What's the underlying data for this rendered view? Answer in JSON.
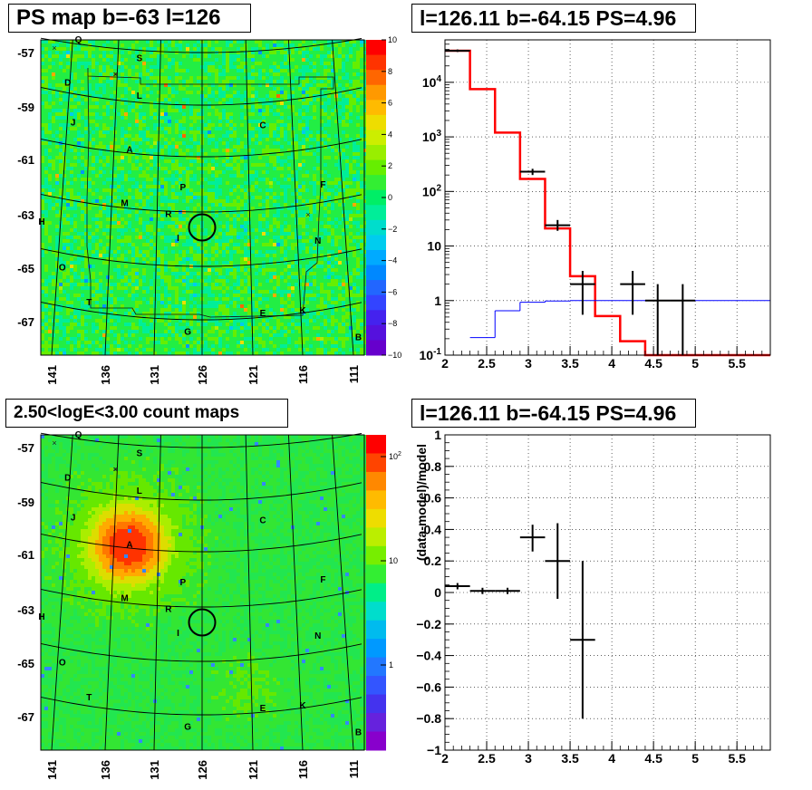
{
  "panels": {
    "top_left_title": "PS map b=-63 l=126",
    "top_right_title": "l=126.11 b=-64.15 PS=4.96",
    "bottom_left_title": "2.50<logE<3.00 count maps",
    "bottom_right_title": "l=126.11 b=-64.15 PS=4.96"
  },
  "colors": {
    "map_green": "#22ee44",
    "hot_red": "#ff2200",
    "model": "#ff0000",
    "baseline": "#0000ff",
    "data": "#000000"
  },
  "chart_data": [
    {
      "type": "heatmap",
      "title": "PS map b=-63 l=126",
      "y_ticks": [
        "-57",
        "-59",
        "-61",
        "-63",
        "-65",
        "-67"
      ],
      "x_ticks": [
        "141",
        "136",
        "131",
        "126",
        "121",
        "116",
        "111"
      ],
      "colorbar_ticks": [
        "10",
        "8",
        "6",
        "4",
        "2",
        "0",
        "−2",
        "−4",
        "−6",
        "−8",
        "−10"
      ],
      "colorbar_range": [
        -10,
        10
      ],
      "source_labels": [
        {
          "t": "Q",
          "l": 138.5,
          "b": -56.6
        },
        {
          "t": "S",
          "l": 132.5,
          "b": -57.3
        },
        {
          "t": "D",
          "l": 139.5,
          "b": -58.2
        },
        {
          "t": "L",
          "l": 132.5,
          "b": -58.7
        },
        {
          "t": "J",
          "l": 139.0,
          "b": -59.7
        },
        {
          "t": "C",
          "l": 120.0,
          "b": -59.8
        },
        {
          "t": "A",
          "l": 133.5,
          "b": -60.7
        },
        {
          "t": "P",
          "l": 128.0,
          "b": -62.1
        },
        {
          "t": "F",
          "l": 114.0,
          "b": -62.0
        },
        {
          "t": "M",
          "l": 134.0,
          "b": -62.7
        },
        {
          "t": "R",
          "l": 129.5,
          "b": -63.1
        },
        {
          "t": "H",
          "l": 142.0,
          "b": -63.4
        },
        {
          "t": "I",
          "l": 128.5,
          "b": -64.0
        },
        {
          "t": "N",
          "l": 114.5,
          "b": -64.1
        },
        {
          "t": "O",
          "l": 140.0,
          "b": -65.1
        },
        {
          "t": "T",
          "l": 137.5,
          "b": -66.4
        },
        {
          "t": "E",
          "l": 120.0,
          "b": -66.8
        },
        {
          "t": "K",
          "l": 116.0,
          "b": -66.7
        },
        {
          "t": "G",
          "l": 127.5,
          "b": -67.5
        },
        {
          "t": "B",
          "l": 110.5,
          "b": -67.7
        }
      ]
    },
    {
      "type": "line",
      "title": "l=126.11 b=-64.15 PS=4.96",
      "x_ticks": [
        "2",
        "2.5",
        "3",
        "3.5",
        "4",
        "4.5",
        "5",
        "5.5"
      ],
      "y_ticks": [
        "10^-1",
        "1",
        "10",
        "10^2",
        "10^3",
        "10^4"
      ],
      "xlim": [
        2,
        5.9
      ],
      "ylim": [
        0.1,
        60000
      ],
      "yscale": "log",
      "series": [
        {
          "edges": [
            2,
            2.3,
            2.6,
            2.9,
            3.2,
            3.5,
            3.8,
            4.1,
            4.4,
            4.7,
            5.0,
            5.3,
            5.6,
            5.9
          ],
          "values": [
            38000,
            7500,
            1200,
            170,
            21,
            2.8,
            0.52,
            0.18,
            0.1,
            0.1,
            0.1,
            0.1,
            0.1
          ]
        },
        {
          "edges": [
            2,
            2.3,
            2.6,
            2.9,
            3.2,
            3.5,
            3.8,
            4.1,
            4.4,
            4.7,
            5.0,
            5.3,
            5.6,
            5.9
          ],
          "values": [
            0.09,
            0.21,
            0.65,
            0.93,
            0.98,
            1,
            1,
            1,
            1,
            1,
            1,
            1,
            1
          ]
        },
        {
          "x": [
            2.15,
            3.05,
            3.35,
            3.65,
            4.25,
            4.55,
            4.85
          ],
          "y": [
            38000,
            230,
            24,
            2.0,
            2.0,
            1.0,
            1.0
          ],
          "ylo": [
            36000,
            200,
            19,
            0.55,
            0.55,
            0.1,
            0.1
          ],
          "yhi": [
            40000,
            260,
            30,
            3.5,
            3.5,
            2.0,
            2.0
          ],
          "xerr": [
            0.15,
            0.15,
            0.15,
            0.15,
            0.15,
            0.15,
            0.15
          ]
        }
      ]
    },
    {
      "type": "heatmap",
      "title": "2.50<logE<3.00 count maps",
      "y_ticks": [
        "-57",
        "-59",
        "-61",
        "-63",
        "-65",
        "-67"
      ],
      "x_ticks": [
        "141",
        "136",
        "131",
        "126",
        "121",
        "116",
        "111"
      ],
      "colorbar_ticks": [
        "10^2",
        "10",
        "1"
      ],
      "colorbar_range": [
        0.2,
        150
      ]
    },
    {
      "type": "scatter",
      "title": "l=126.11 b=-64.15 PS=4.96",
      "ylabel": "(data-model)/model",
      "x_ticks": [
        "2",
        "2.5",
        "3",
        "3.5",
        "4",
        "4.5",
        "5",
        "5.5"
      ],
      "y_ticks": [
        "1",
        "0.8",
        "0.6",
        "0.4",
        "0.2",
        "0",
        "−0.2",
        "−0.4",
        "−0.6",
        "−0.8",
        "−1"
      ],
      "xlim": [
        2,
        5.9
      ],
      "ylim": [
        -1,
        1
      ],
      "series": [
        {
          "x": [
            2.15,
            2.45,
            2.75,
            3.05,
            3.35,
            3.65
          ],
          "y": [
            0.04,
            0.01,
            0.01,
            0.35,
            0.2,
            -0.3
          ],
          "ylo": [
            0.02,
            -0.01,
            -0.01,
            0.26,
            -0.04,
            -0.8
          ],
          "yhi": [
            0.06,
            0.03,
            0.03,
            0.43,
            0.44,
            0.2
          ],
          "xerr": [
            0.15,
            0.15,
            0.15,
            0.15,
            0.15,
            0.15
          ]
        }
      ]
    }
  ]
}
